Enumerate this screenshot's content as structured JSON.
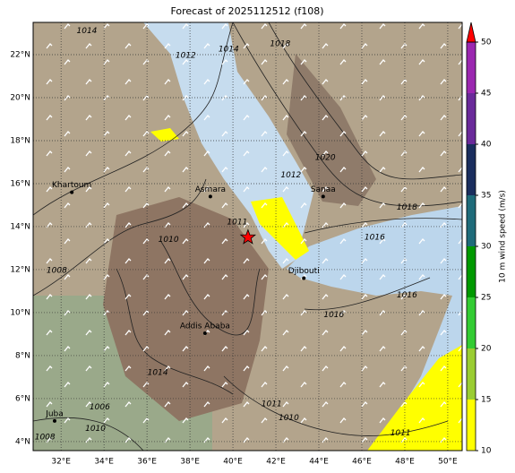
{
  "map": {
    "title": "Forecast of 2025112512 (f108)",
    "lon_range": [
      30.7,
      50.67
    ],
    "lat_range": [
      3.58,
      23.5
    ],
    "lon_ticks": [
      {
        "value": 32,
        "label": "32°E"
      },
      {
        "value": 34,
        "label": "34°E"
      },
      {
        "value": 36,
        "label": "36°E"
      },
      {
        "value": 38,
        "label": "38°E"
      },
      {
        "value": 40,
        "label": "40°E"
      },
      {
        "value": 42,
        "label": "42°E"
      },
      {
        "value": 44,
        "label": "44°E"
      },
      {
        "value": 46,
        "label": "46°E"
      },
      {
        "value": 48,
        "label": "48°E"
      },
      {
        "value": 50,
        "label": "50°E"
      }
    ],
    "lat_ticks": [
      {
        "value": 4,
        "label": "4°N"
      },
      {
        "value": 6,
        "label": "6°N"
      },
      {
        "value": 8,
        "label": "8°N"
      },
      {
        "value": 10,
        "label": "10°N"
      },
      {
        "value": 12,
        "label": "12°N"
      },
      {
        "value": 14,
        "label": "14°N"
      },
      {
        "value": 16,
        "label": "16°N"
      },
      {
        "value": 18,
        "label": "18°N"
      },
      {
        "value": 20,
        "label": "20°N"
      },
      {
        "value": 22,
        "label": "22°N"
      }
    ],
    "cities": [
      {
        "name": "Khartoum",
        "lon": 32.5,
        "lat": 15.6
      },
      {
        "name": "Asmara",
        "lon": 38.95,
        "lat": 15.4
      },
      {
        "name": "Sanaa",
        "lon": 44.2,
        "lat": 15.4
      },
      {
        "name": "Djibouti",
        "lon": 43.3,
        "lat": 11.6
      },
      {
        "name": "Addis Ababa",
        "lon": 38.7,
        "lat": 9.04
      },
      {
        "name": "Juba",
        "lon": 31.7,
        "lat": 4.96
      }
    ],
    "marker": {
      "lon": 40.7,
      "lat": 13.5,
      "color": "#ff0000"
    },
    "isobar_labels": [
      {
        "label": "1014",
        "lon": 33.2,
        "lat": 23.1
      },
      {
        "label": "1012",
        "lon": 37.8,
        "lat": 21.96
      },
      {
        "label": "1014",
        "lon": 39.8,
        "lat": 22.25
      },
      {
        "label": "1018",
        "lon": 42.2,
        "lat": 22.5
      },
      {
        "label": "1012",
        "lon": 42.7,
        "lat": 16.4
      },
      {
        "label": "1020",
        "lon": 44.3,
        "lat": 17.2
      },
      {
        "label": "1018",
        "lon": 48.1,
        "lat": 14.9
      },
      {
        "label": "1016",
        "lon": 46.6,
        "lat": 13.5
      },
      {
        "label": "1011",
        "lon": 40.2,
        "lat": 14.2
      },
      {
        "label": "1010",
        "lon": 37.0,
        "lat": 13.4
      },
      {
        "label": "1008",
        "lon": 31.8,
        "lat": 11.95
      },
      {
        "label": "1016",
        "lon": 44.7,
        "lat": 9.9
      },
      {
        "label": "1016",
        "lon": 48.1,
        "lat": 10.8
      },
      {
        "label": "1014",
        "lon": 36.5,
        "lat": 7.2
      },
      {
        "label": "1011",
        "lon": 41.8,
        "lat": 5.75
      },
      {
        "label": "1010",
        "lon": 42.6,
        "lat": 5.1
      },
      {
        "label": "1011",
        "lon": 47.8,
        "lat": 4.4
      },
      {
        "label": "1006",
        "lon": 33.8,
        "lat": 5.6
      },
      {
        "label": "1010",
        "lon": 33.6,
        "lat": 4.6
      },
      {
        "label": "1008",
        "lon": 31.25,
        "lat": 4.2
      }
    ],
    "colorbar": {
      "label": "10 m wind speed (m/s)",
      "ticks": [
        10,
        15,
        20,
        25,
        30,
        35,
        40,
        45,
        50
      ],
      "colors": [
        "#ffff00",
        "#9acd32",
        "#33cc33",
        "#009900",
        "#1f6b7a",
        "#1a2e5e",
        "#6a2a9a",
        "#9b27b0"
      ],
      "extend_color": "#ff0000"
    }
  }
}
